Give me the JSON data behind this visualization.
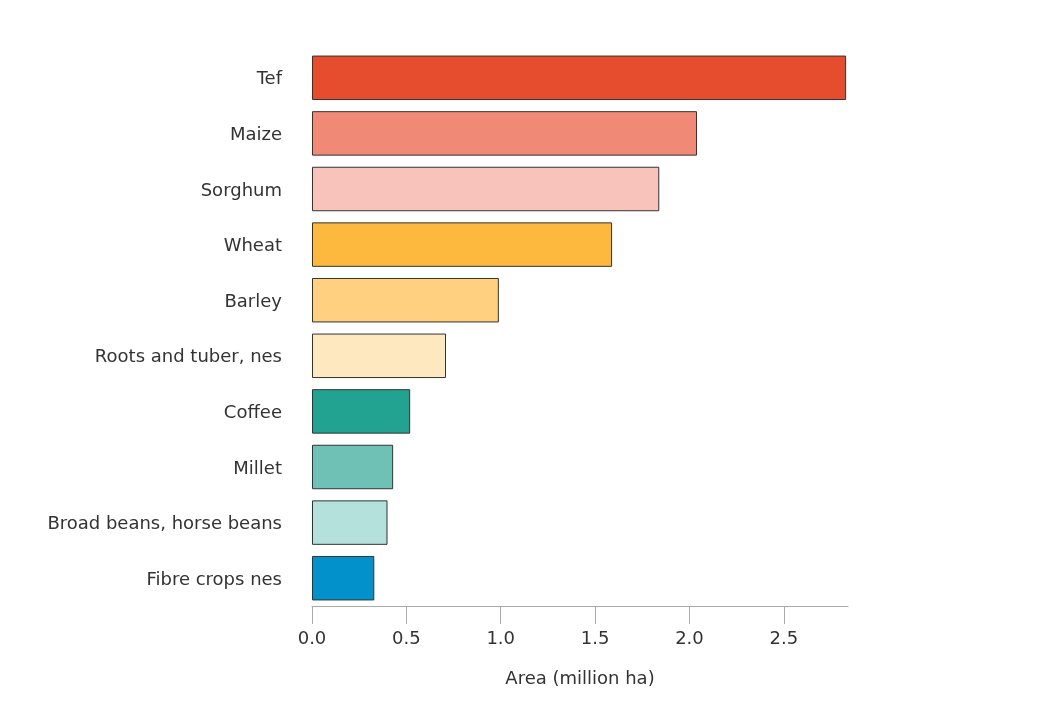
{
  "chart_data": {
    "type": "bar",
    "orientation": "horizontal",
    "xlabel": "Area (million ha)",
    "categories": [
      "Tef",
      "Maize",
      "Sorghum",
      "Wheat",
      "Barley",
      "Roots and tuber, nes",
      "Coffee",
      "Millet",
      "Broad beans, horse beans",
      "Fibre crops nes"
    ],
    "values": [
      2.83,
      2.04,
      1.84,
      1.59,
      0.99,
      0.71,
      0.52,
      0.43,
      0.4,
      0.33
    ],
    "colors": [
      "#e64c2e",
      "#f08a77",
      "#f8c3bb",
      "#fdb93e",
      "#fed080",
      "#fee8c0",
      "#22a290",
      "#6fc1b5",
      "#b5e1dc",
      "#0291ca"
    ],
    "xlim": [
      0,
      2.84
    ],
    "xticks": [
      {
        "value": 0,
        "label": "0.0"
      },
      {
        "value": 0.5,
        "label": "0.5"
      },
      {
        "value": 1,
        "label": "1.0"
      },
      {
        "value": 1.5,
        "label": "1.5"
      },
      {
        "value": 2,
        "label": "2.0"
      },
      {
        "value": 2.5,
        "label": "2.5"
      }
    ],
    "grid": false
  }
}
